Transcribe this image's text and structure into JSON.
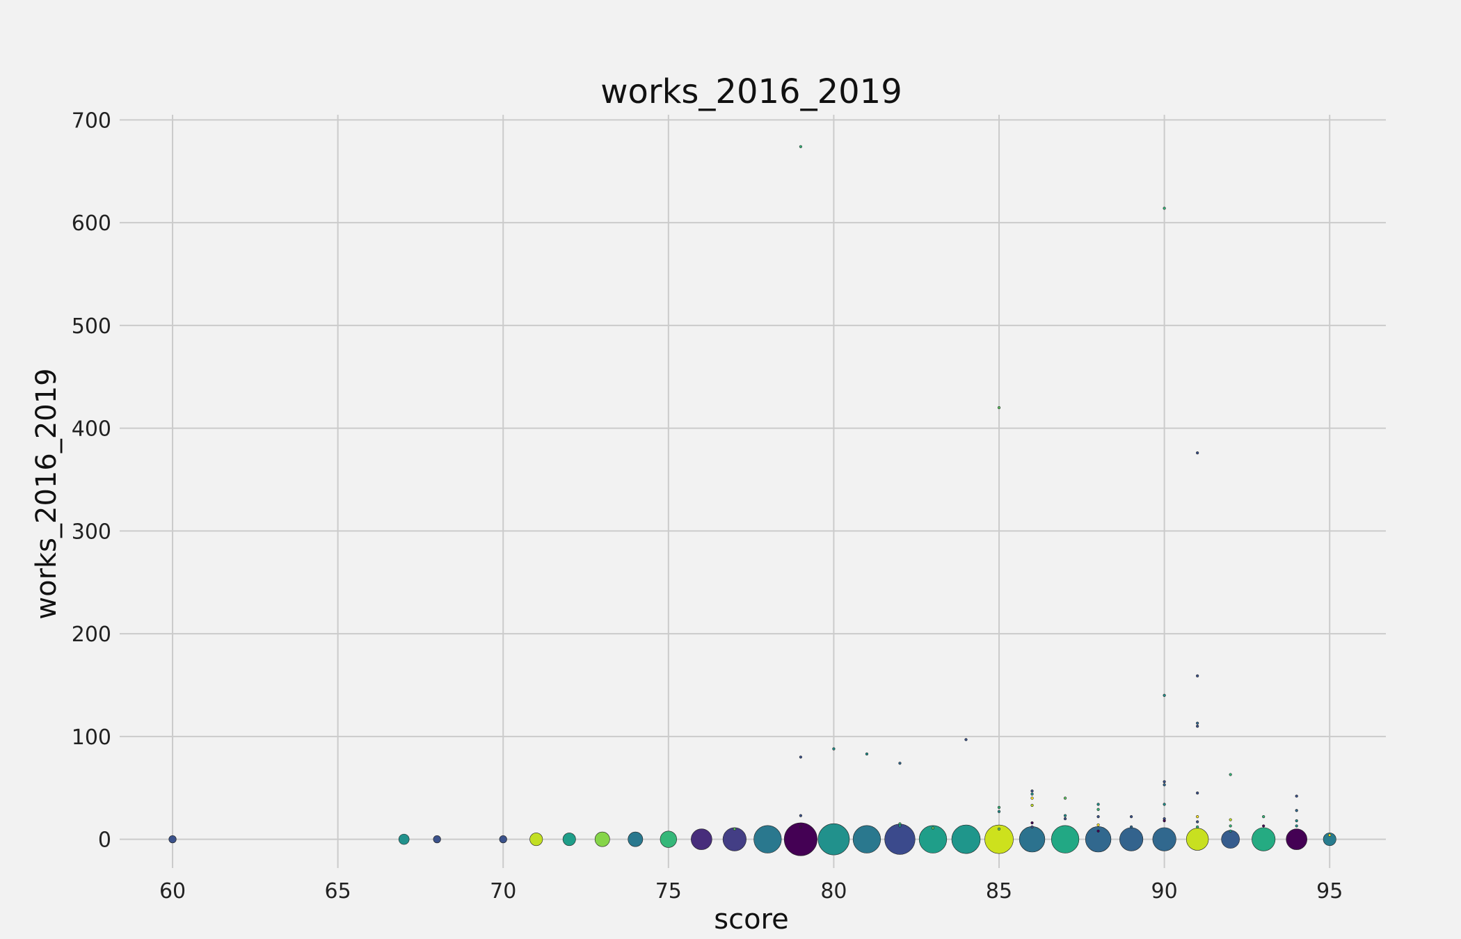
{
  "chart_data": {
    "type": "scatter",
    "title": "works_2016_2019",
    "xlabel": "score",
    "ylabel": "works_2016_2019",
    "xlim": [
      58.4,
      96.7
    ],
    "ylim": [
      -28,
      705
    ],
    "xticks": [
      60,
      65,
      70,
      75,
      80,
      85,
      90,
      95
    ],
    "yticks": [
      0,
      100,
      200,
      300,
      400,
      500,
      600,
      700
    ],
    "grid": true,
    "legend": "none",
    "size_note": "marker area grows with number of entries at each score (sizes relative, 1-20)",
    "points": [
      {
        "x": 60,
        "y": 0,
        "size": 1,
        "color": "#3b528b"
      },
      {
        "x": 67,
        "y": 0,
        "size": 2,
        "color": "#21918c"
      },
      {
        "x": 68,
        "y": 0,
        "size": 1,
        "color": "#3b528b"
      },
      {
        "x": 70,
        "y": 0,
        "size": 1,
        "color": "#3b528b"
      },
      {
        "x": 71,
        "y": 0,
        "size": 3,
        "color": "#c2df23"
      },
      {
        "x": 72,
        "y": 0,
        "size": 3,
        "color": "#1f9e89"
      },
      {
        "x": 73,
        "y": 0,
        "size": 4,
        "color": "#86d549"
      },
      {
        "x": 74,
        "y": 0,
        "size": 4,
        "color": "#2a788e"
      },
      {
        "x": 75,
        "y": 0,
        "size": 5,
        "color": "#35b779"
      },
      {
        "x": 76,
        "y": 0,
        "size": 8,
        "color": "#472d7b"
      },
      {
        "x": 77,
        "y": 0,
        "size": 10,
        "color": "#433e85"
      },
      {
        "x": 78,
        "y": 0,
        "size": 14,
        "color": "#2a788e"
      },
      {
        "x": 79,
        "y": 0,
        "size": 20,
        "color": "#440154"
      },
      {
        "x": 80,
        "y": 0,
        "size": 18,
        "color": "#21918c"
      },
      {
        "x": 81,
        "y": 0,
        "size": 14,
        "color": "#2a788e"
      },
      {
        "x": 82,
        "y": 0,
        "size": 17,
        "color": "#3b4a8c"
      },
      {
        "x": 83,
        "y": 0,
        "size": 14,
        "color": "#1f9e89"
      },
      {
        "x": 84,
        "y": 0,
        "size": 15,
        "color": "#1f968b"
      },
      {
        "x": 85,
        "y": 0,
        "size": 15,
        "color": "#cde11d"
      },
      {
        "x": 86,
        "y": 0,
        "size": 12,
        "color": "#2c728e"
      },
      {
        "x": 87,
        "y": 0,
        "size": 14,
        "color": "#22a884"
      },
      {
        "x": 88,
        "y": 0,
        "size": 12,
        "color": "#31688e"
      },
      {
        "x": 89,
        "y": 0,
        "size": 10,
        "color": "#33638d"
      },
      {
        "x": 90,
        "y": 0,
        "size": 10,
        "color": "#31688e"
      },
      {
        "x": 91,
        "y": 0,
        "size": 9,
        "color": "#c8e020"
      },
      {
        "x": 92,
        "y": 0,
        "size": 6,
        "color": "#365c8d"
      },
      {
        "x": 93,
        "y": 0,
        "size": 10,
        "color": "#25ab82"
      },
      {
        "x": 94,
        "y": 0,
        "size": 8,
        "color": "#440154"
      },
      {
        "x": 95,
        "y": 0,
        "size": 3,
        "color": "#287c8e"
      },
      {
        "x": 77,
        "y": 10,
        "size": 0.3,
        "color": "#5ec962"
      },
      {
        "x": 79,
        "y": 674,
        "size": 0.3,
        "color": "#35b779"
      },
      {
        "x": 79,
        "y": 80,
        "size": 0.3,
        "color": "#3b528b"
      },
      {
        "x": 79,
        "y": 23,
        "size": 0.3,
        "color": "#3b528b"
      },
      {
        "x": 79,
        "y": 12,
        "size": 0.3,
        "color": "#440154"
      },
      {
        "x": 80,
        "y": 88,
        "size": 0.3,
        "color": "#21918c"
      },
      {
        "x": 81,
        "y": 83,
        "size": 0.3,
        "color": "#21918c"
      },
      {
        "x": 82,
        "y": 74,
        "size": 0.3,
        "color": "#31688e"
      },
      {
        "x": 82,
        "y": 15,
        "size": 0.3,
        "color": "#35b779"
      },
      {
        "x": 82,
        "y": 13,
        "size": 0.3,
        "color": "#21918c"
      },
      {
        "x": 83,
        "y": 11,
        "size": 0.3,
        "color": "#5ec962"
      },
      {
        "x": 84,
        "y": 97,
        "size": 0.3,
        "color": "#3b528b"
      },
      {
        "x": 85,
        "y": 420,
        "size": 0.3,
        "color": "#5ec962"
      },
      {
        "x": 85,
        "y": 31,
        "size": 0.3,
        "color": "#35b779"
      },
      {
        "x": 85,
        "y": 27,
        "size": 0.3,
        "color": "#21918c"
      },
      {
        "x": 85,
        "y": 10,
        "size": 0.3,
        "color": "#5ec962"
      },
      {
        "x": 86,
        "y": 47,
        "size": 0.3,
        "color": "#3b528b"
      },
      {
        "x": 86,
        "y": 44,
        "size": 0.3,
        "color": "#21918c"
      },
      {
        "x": 86,
        "y": 40,
        "size": 0.3,
        "color": "#fde725"
      },
      {
        "x": 86,
        "y": 33,
        "size": 0.3,
        "color": "#c2df23"
      },
      {
        "x": 86,
        "y": 16,
        "size": 0.3,
        "color": "#440154"
      },
      {
        "x": 86,
        "y": 12,
        "size": 0.3,
        "color": "#3b528b"
      },
      {
        "x": 87,
        "y": 40,
        "size": 0.3,
        "color": "#5ec962"
      },
      {
        "x": 87,
        "y": 23,
        "size": 0.3,
        "color": "#21918c"
      },
      {
        "x": 87,
        "y": 20,
        "size": 0.3,
        "color": "#3b528b"
      },
      {
        "x": 88,
        "y": 34,
        "size": 0.3,
        "color": "#21918c"
      },
      {
        "x": 88,
        "y": 29,
        "size": 0.3,
        "color": "#35b779"
      },
      {
        "x": 88,
        "y": 22,
        "size": 0.3,
        "color": "#3b528b"
      },
      {
        "x": 88,
        "y": 14,
        "size": 0.3,
        "color": "#fde725"
      },
      {
        "x": 88,
        "y": 8,
        "size": 0.3,
        "color": "#440154"
      },
      {
        "x": 89,
        "y": 22,
        "size": 0.3,
        "color": "#3b528b"
      },
      {
        "x": 89,
        "y": 12,
        "size": 0.3,
        "color": "#31688e"
      },
      {
        "x": 90,
        "y": 614,
        "size": 0.3,
        "color": "#35b779"
      },
      {
        "x": 90,
        "y": 140,
        "size": 0.3,
        "color": "#21918c"
      },
      {
        "x": 90,
        "y": 56,
        "size": 0.3,
        "color": "#3b528b"
      },
      {
        "x": 90,
        "y": 53,
        "size": 0.3,
        "color": "#31688e"
      },
      {
        "x": 90,
        "y": 34,
        "size": 0.3,
        "color": "#21918c"
      },
      {
        "x": 90,
        "y": 20,
        "size": 0.3,
        "color": "#3b528b"
      },
      {
        "x": 90,
        "y": 18,
        "size": 0.3,
        "color": "#440154"
      },
      {
        "x": 91,
        "y": 376,
        "size": 0.3,
        "color": "#3b528b"
      },
      {
        "x": 91,
        "y": 159,
        "size": 0.3,
        "color": "#3b528b"
      },
      {
        "x": 91,
        "y": 113,
        "size": 0.3,
        "color": "#31688e"
      },
      {
        "x": 91,
        "y": 110,
        "size": 0.3,
        "color": "#3b528b"
      },
      {
        "x": 91,
        "y": 45,
        "size": 0.3,
        "color": "#3b528b"
      },
      {
        "x": 91,
        "y": 22,
        "size": 0.3,
        "color": "#fde725"
      },
      {
        "x": 91,
        "y": 17,
        "size": 0.3,
        "color": "#3b528b"
      },
      {
        "x": 91,
        "y": 12,
        "size": 0.3,
        "color": "#35b779"
      },
      {
        "x": 92,
        "y": 63,
        "size": 0.3,
        "color": "#35b779"
      },
      {
        "x": 92,
        "y": 19,
        "size": 0.3,
        "color": "#c2df23"
      },
      {
        "x": 92,
        "y": 13,
        "size": 0.3,
        "color": "#35b779"
      },
      {
        "x": 92,
        "y": 8,
        "size": 0.3,
        "color": "#21918c"
      },
      {
        "x": 93,
        "y": 22,
        "size": 0.3,
        "color": "#35b779"
      },
      {
        "x": 93,
        "y": 13,
        "size": 0.3,
        "color": "#440154"
      },
      {
        "x": 94,
        "y": 42,
        "size": 0.3,
        "color": "#3b528b"
      },
      {
        "x": 94,
        "y": 28,
        "size": 0.3,
        "color": "#31688e"
      },
      {
        "x": 94,
        "y": 18,
        "size": 0.3,
        "color": "#21918c"
      },
      {
        "x": 94,
        "y": 13,
        "size": 0.3,
        "color": "#21918c"
      },
      {
        "x": 95,
        "y": 4,
        "size": 0.3,
        "color": "#fde725"
      }
    ]
  }
}
